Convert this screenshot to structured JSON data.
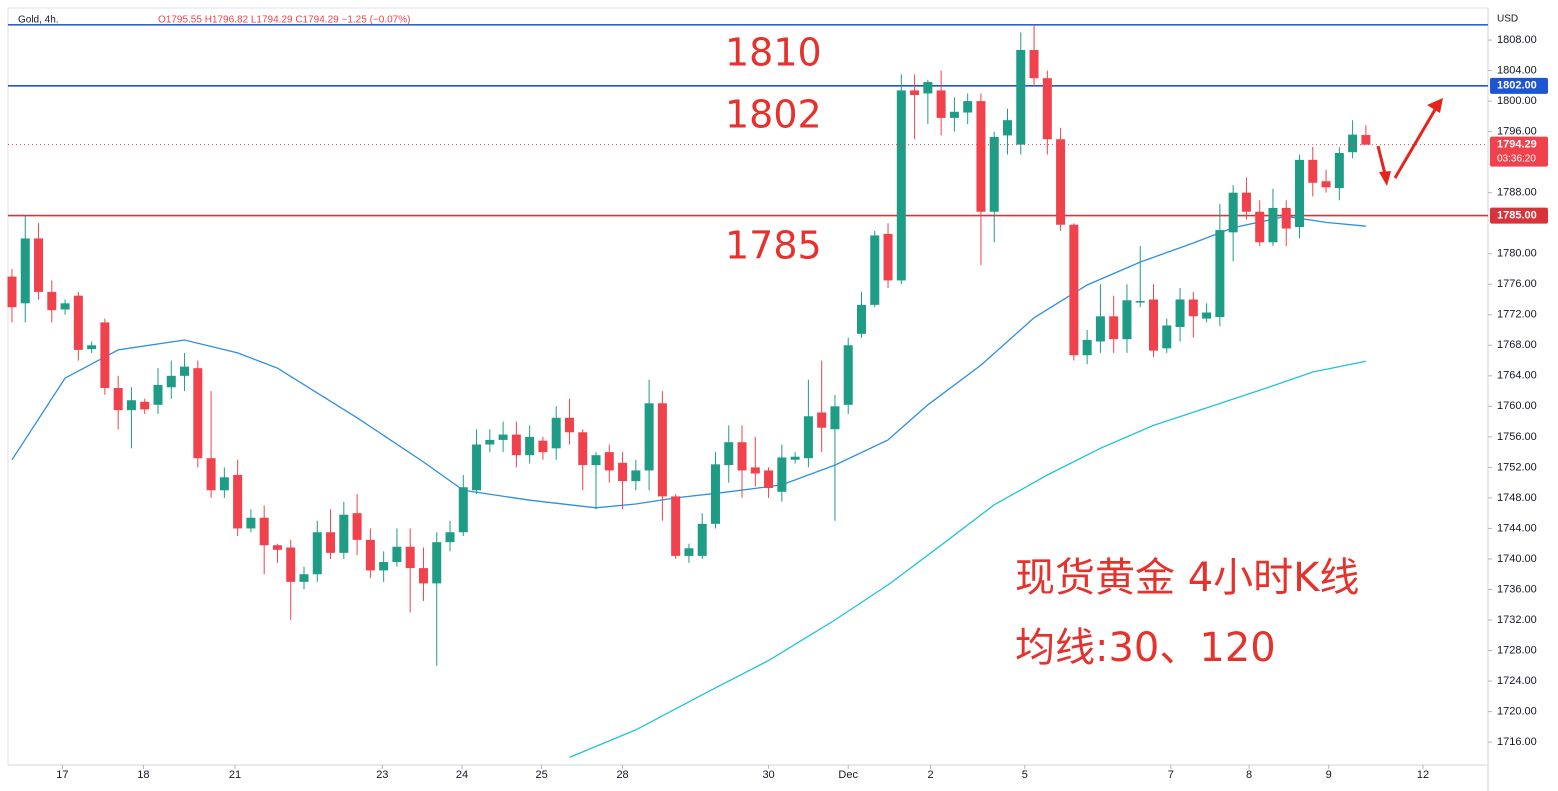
{
  "chart_data": {
    "type": "candlestick",
    "title": "Gold, 4h.",
    "ohlc": "O1795.55  H1796.82  L1794.29  C1794.29  −1.25 (−0.07%)",
    "currency": "USD",
    "up_color": "#1e9c86",
    "down_color": "#f0424c",
    "open": [
      1777,
      1773.5,
      1782,
      1775,
      1772.7,
      1774.5,
      1767.5,
      1771,
      1762.4,
      1759.5,
      1760.6,
      1760.2,
      1762.5,
      1764,
      1765,
      1753.2,
      1749,
      1751,
      1744,
      1745.4,
      1741.8,
      1741.5,
      1737,
      1738,
      1743.5,
      1740.8,
      1746,
      1742.5,
      1738.5,
      1739.6,
      1741.6,
      1738.8,
      1736.8,
      1742.2,
      1743.5,
      1749,
      1755,
      1755.6,
      1756.3,
      1753.6,
      1755.5,
      1754.5,
      1758.5,
      1756.6,
      1752.3,
      1754,
      1752.6,
      1750.2,
      1751.6,
      1760.4,
      1748.2,
      1740.4,
      1740.4,
      1744.6,
      1752.3,
      1755.3,
      1752,
      1751.6,
      1748.8,
      1753,
      1753.2,
      1759.2,
      1757,
      1760.2,
      1769.5,
      1773.3,
      1782.6,
      1776.5,
      1801.4,
      1801,
      1801.4,
      1797.8,
      1798.5,
      1800,
      1785.5,
      1795.5,
      1794.3,
      1806.7,
      1803,
      1795,
      1783.8,
      1766.7,
      1768.5,
      1771.8,
      1768.8,
      1773.6,
      1774,
      1767.6,
      1770.4,
      1774,
      1771.5,
      1771.7,
      1782.8,
      1788,
      1785.5,
      1781.5,
      1786,
      1783.5,
      1792.3,
      1789.5,
      1788.6,
      1793.3,
      1795.55
    ],
    "high": [
      1778,
      1785,
      1784,
      1776.5,
      1774,
      1775,
      1768.5,
      1771.5,
      1764,
      1762.5,
      1761,
      1765,
      1766,
      1767,
      1766,
      1762,
      1752,
      1753,
      1746.5,
      1747,
      1742,
      1742.5,
      1739,
      1745,
      1746.5,
      1747.5,
      1748.5,
      1744,
      1741,
      1744,
      1744,
      1741.5,
      1743.5,
      1745,
      1751,
      1757,
      1757,
      1758,
      1758,
      1757.5,
      1756,
      1760,
      1761,
      1757,
      1754,
      1755,
      1754,
      1753,
      1763.5,
      1762,
      1748.5,
      1742,
      1746,
      1754,
      1757.5,
      1757.5,
      1756,
      1752,
      1755,
      1754,
      1763.5,
      1766,
      1761.5,
      1769,
      1775,
      1783,
      1784,
      1803.5,
      1803.5,
      1802.8,
      1804,
      1800.5,
      1801,
      1801,
      1796,
      1799,
      1809,
      1810,
      1804,
      1796.5,
      1784,
      1770,
      1776,
      1774.5,
      1776,
      1781,
      1776,
      1771.5,
      1775.5,
      1775,
      1773.5,
      1786.5,
      1789,
      1790,
      1787,
      1788.5,
      1787,
      1793,
      1794,
      1791,
      1794,
      1797.5,
      1796.82
    ],
    "low": [
      1771,
      1771,
      1774,
      1771,
      1772,
      1766,
      1767,
      1761.5,
      1757,
      1754.5,
      1759,
      1759,
      1761,
      1762,
      1752,
      1748,
      1748,
      1743,
      1743.5,
      1738,
      1739.5,
      1732,
      1736,
      1737,
      1740,
      1740,
      1740.5,
      1737.5,
      1737,
      1739,
      1733,
      1734.5,
      1726,
      1741,
      1743,
      1748.5,
      1754,
      1754,
      1752,
      1752.5,
      1753,
      1753,
      1755,
      1749,
      1746.5,
      1750,
      1746.5,
      1749,
      1749,
      1745,
      1740,
      1739.5,
      1740,
      1744,
      1750,
      1748,
      1749.5,
      1748,
      1747.5,
      1752.5,
      1752,
      1754,
      1745,
      1759,
      1769,
      1773,
      1775.5,
      1776,
      1795,
      1797,
      1795.5,
      1796,
      1797,
      1778.5,
      1781.5,
      1793,
      1793,
      1802,
      1793,
      1783,
      1766,
      1765.5,
      1767,
      1767,
      1767,
      1773,
      1766.5,
      1767,
      1768.5,
      1769,
      1771,
      1770.5,
      1779,
      1784.5,
      1781,
      1781,
      1781,
      1782,
      1787.5,
      1788,
      1787,
      1792.5,
      1794.29
    ],
    "close": [
      1773,
      1782,
      1775,
      1772.6,
      1773.5,
      1767.4,
      1768,
      1762.4,
      1759.5,
      1760.8,
      1759.6,
      1762.8,
      1764,
      1765.2,
      1753.2,
      1749,
      1750.7,
      1744,
      1745.4,
      1741.8,
      1741.2,
      1737,
      1738,
      1743.5,
      1740.8,
      1745.8,
      1742.5,
      1738.5,
      1739.6,
      1741.6,
      1738.8,
      1736.8,
      1742.2,
      1743.5,
      1749.4,
      1755,
      1755.6,
      1756.3,
      1753.6,
      1756,
      1754,
      1758.5,
      1756.6,
      1752.3,
      1753.6,
      1751.6,
      1750.2,
      1751.6,
      1760.4,
      1748.2,
      1740.4,
      1741.4,
      1744.6,
      1752.4,
      1755.3,
      1751.6,
      1751.2,
      1749.3,
      1753.3,
      1753.4,
      1758.7,
      1757.2,
      1760,
      1768,
      1773.3,
      1782.4,
      1776.5,
      1801.4,
      1800.8,
      1802.5,
      1797.8,
      1798.6,
      1800,
      1785.5,
      1795.3,
      1797.5,
      1806.7,
      1803,
      1795,
      1783.8,
      1766.7,
      1768.7,
      1771.8,
      1768.8,
      1773.9,
      1773.8,
      1767.3,
      1770.6,
      1774,
      1771.8,
      1772.3,
      1783.1,
      1788,
      1785.5,
      1781.5,
      1786,
      1783.3,
      1792.3,
      1789.3,
      1788.7,
      1793.2,
      1795.6,
      1794.29
    ],
    "lines": [
      {
        "color": "#2e8fe0",
        "x": [
          0,
          4,
          8,
          13,
          17,
          20,
          26,
          31,
          34,
          39,
          44,
          47,
          50,
          54,
          58,
          62,
          66,
          69,
          73,
          77,
          81,
          85,
          89,
          92,
          96,
          99,
          102
        ],
        "values": [
          1753,
          1763.7,
          1767.4,
          1768.7,
          1767,
          1765,
          1758.5,
          1752.7,
          1749,
          1747.7,
          1746.7,
          1747.2,
          1748,
          1748.8,
          1749.7,
          1752.3,
          1755.6,
          1760.2,
          1765.4,
          1771.6,
          1775.9,
          1778.9,
          1781.4,
          1783.4,
          1784.9,
          1784.1,
          1783.6
        ]
      },
      {
        "color": "#22c3d6",
        "x": [
          42,
          47,
          52,
          57,
          62,
          66,
          70,
          74,
          78,
          82,
          86,
          90,
          94,
          98,
          102
        ],
        "values": [
          1714,
          1717.6,
          1722.2,
          1726.7,
          1732,
          1736.6,
          1741.8,
          1747.1,
          1751,
          1754.5,
          1757.5,
          1759.8,
          1762.1,
          1764.5,
          1765.9
        ]
      }
    ],
    "levels": [
      {
        "value": 1810,
        "color": "#2f5fd8"
      },
      {
        "value": 1802,
        "color": "#1f55d0",
        "label": "1802.00"
      },
      {
        "value": 1785,
        "color": "#d8333a",
        "label": "1785.00"
      }
    ],
    "last_price": {
      "value": 1794.29,
      "countdown": "03:36:20",
      "color": "#f0424c"
    },
    "annotations": [
      "现货黄金 4小时K线",
      "均线:30、120"
    ],
    "xlim": [
      -0.3,
      111.2
    ],
    "xticks": [
      {
        "value": 3.8,
        "label": "17"
      },
      {
        "value": 9.9,
        "label": "18"
      },
      {
        "value": 16.8,
        "label": "21"
      },
      {
        "value": 27.9,
        "label": "23"
      },
      {
        "value": 33.9,
        "label": "24"
      },
      {
        "value": 39.9,
        "label": "25"
      },
      {
        "value": 46,
        "label": "28"
      },
      {
        "value": 57,
        "label": "30"
      },
      {
        "value": 63,
        "label": "Dec"
      },
      {
        "value": 69.2,
        "label": "2"
      },
      {
        "value": 76.3,
        "label": "5"
      },
      {
        "value": 87.3,
        "label": "7"
      },
      {
        "value": 93.2,
        "label": "8"
      },
      {
        "value": 99.2,
        "label": "9"
      },
      {
        "value": 106.3,
        "label": "12"
      }
    ],
    "ylim": [
      1713,
      1812.2
    ],
    "yticks": [
      {
        "value": 1716,
        "label": "1716.00"
      },
      {
        "value": 1720,
        "label": "1720.00"
      },
      {
        "value": 1724,
        "label": "1724.00"
      },
      {
        "value": 1728,
        "label": "1728.00"
      },
      {
        "value": 1732,
        "label": "1732.00"
      },
      {
        "value": 1736,
        "label": "1736.00"
      },
      {
        "value": 1740,
        "label": "1740.00"
      },
      {
        "value": 1744,
        "label": "1744.00"
      },
      {
        "value": 1748,
        "label": "1748.00"
      },
      {
        "value": 1752,
        "label": "1752.00"
      },
      {
        "value": 1756,
        "label": "1756.00"
      },
      {
        "value": 1760,
        "label": "1760.00"
      },
      {
        "value": 1764,
        "label": "1764.00"
      },
      {
        "value": 1768,
        "label": "1768.00"
      },
      {
        "value": 1772,
        "label": "1772.00"
      },
      {
        "value": 1776,
        "label": "1776.00"
      },
      {
        "value": 1780,
        "label": "1780.00"
      },
      {
        "value": 1788,
        "label": "1788.00"
      },
      {
        "value": 1796,
        "label": "1796.00"
      },
      {
        "value": 1800,
        "label": "1800.00"
      },
      {
        "value": 1804,
        "label": "1804.00"
      },
      {
        "value": 1808,
        "label": "1808.00"
      }
    ]
  }
}
